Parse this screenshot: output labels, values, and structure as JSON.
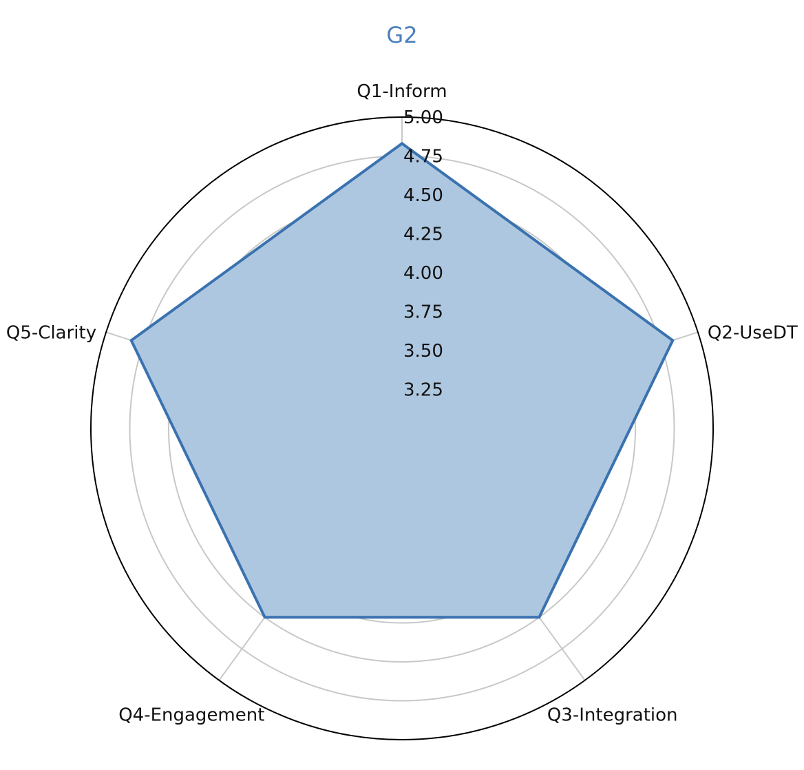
{
  "chart_data": {
    "type": "radar",
    "title": "G2",
    "categories": [
      "Q1-Inform",
      "Q2-UseDT",
      "Q3-Integration",
      "Q4-Engagement",
      "Q5-Clarity"
    ],
    "series": [
      {
        "values": [
          4.83,
          4.83,
          4.5,
          4.5,
          4.83
        ]
      }
    ],
    "rlim": [
      3.0,
      5.0
    ],
    "rticks": [
      "3.25",
      "3.50",
      "3.75",
      "4.00",
      "4.25",
      "4.50",
      "4.75",
      "5.00"
    ],
    "grid": true
  },
  "colors": {
    "title": "#4a7fbd",
    "series_line": "#3a72b0",
    "series_fill": "#aec7e0",
    "grid": "#c8c8c8",
    "outer_ring": "#000000"
  }
}
